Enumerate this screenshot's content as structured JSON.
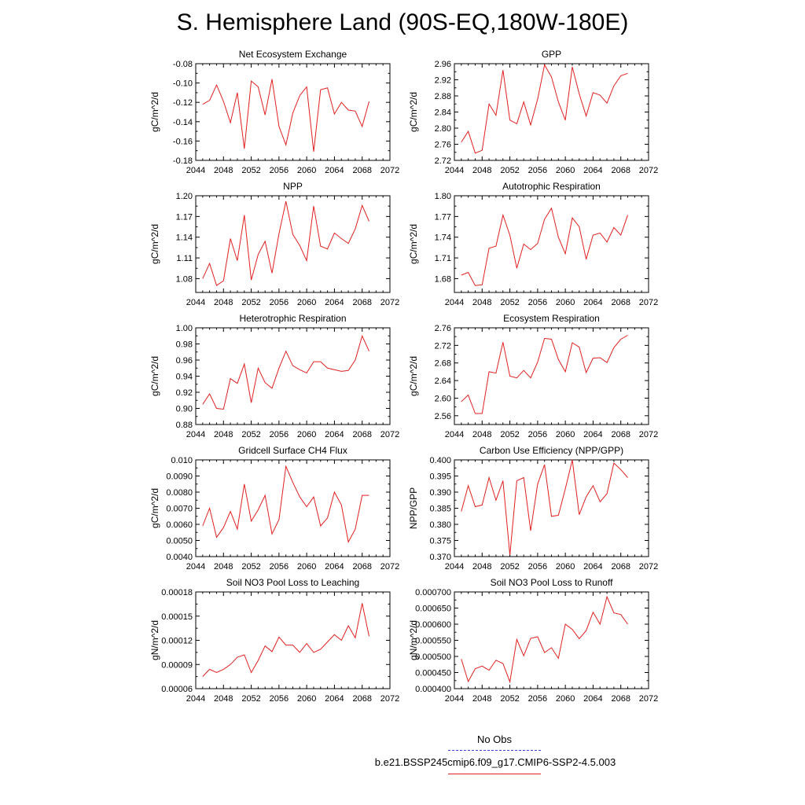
{
  "title": "S. Hemisphere Land (90S-EQ,180W-180E)",
  "legend": {
    "obs_label": "No Obs",
    "model_label": "b.e21.BSSP245cmip6.f09_g17.CMIP6-SSP2-4.5.003",
    "obs_color": "#3b3bd6",
    "model_color": "#e02020"
  },
  "chart_data": [
    {
      "type": "line",
      "title": "Net Ecosystem Exchange",
      "xlabel": "",
      "ylabel": "gC/m^2/d",
      "xlim": [
        2044,
        2072
      ],
      "ylim": [
        -0.18,
        -0.08
      ],
      "x_ticks": [
        "2044",
        "2048",
        "2052",
        "2056",
        "2060",
        "2064",
        "2068",
        "2072"
      ],
      "y_ticks": [
        "-0.18",
        "-0.16",
        "-0.14",
        "-0.12",
        "-0.10",
        "-0.08"
      ],
      "series": [
        {
          "x": [
            2045,
            2046,
            2047,
            2048,
            2049,
            2050,
            2051,
            2052,
            2053,
            2054,
            2055,
            2056,
            2057,
            2058,
            2059,
            2060,
            2061,
            2062,
            2063,
            2064,
            2065,
            2066,
            2067,
            2068,
            2069
          ],
          "values": [
            -0.122,
            -0.118,
            -0.102,
            -0.119,
            -0.141,
            -0.11,
            -0.168,
            -0.098,
            -0.104,
            -0.133,
            -0.096,
            -0.145,
            -0.164,
            -0.131,
            -0.113,
            -0.104,
            -0.171,
            -0.107,
            -0.105,
            -0.132,
            -0.12,
            -0.128,
            -0.129,
            -0.145,
            -0.119
          ]
        }
      ]
    },
    {
      "type": "line",
      "title": "GPP",
      "xlabel": "",
      "ylabel": "gC/m^2/d",
      "xlim": [
        2044,
        2072
      ],
      "ylim": [
        2.72,
        2.96
      ],
      "x_ticks": [
        "2044",
        "2048",
        "2052",
        "2056",
        "2060",
        "2064",
        "2068",
        "2072"
      ],
      "y_ticks": [
        "2.72",
        "2.76",
        "2.80",
        "2.84",
        "2.88",
        "2.92",
        "2.96"
      ],
      "series": [
        {
          "x": [
            2045,
            2046,
            2047,
            2048,
            2049,
            2050,
            2051,
            2052,
            2053,
            2054,
            2055,
            2056,
            2057,
            2058,
            2059,
            2060,
            2061,
            2062,
            2063,
            2064,
            2065,
            2066,
            2067,
            2068,
            2069
          ],
          "values": [
            2.765,
            2.792,
            2.738,
            2.745,
            2.86,
            2.832,
            2.944,
            2.82,
            2.811,
            2.865,
            2.808,
            2.872,
            2.957,
            2.927,
            2.865,
            2.82,
            2.952,
            2.885,
            2.83,
            2.888,
            2.882,
            2.862,
            2.905,
            2.93,
            2.936
          ]
        }
      ]
    },
    {
      "type": "line",
      "title": "NPP",
      "xlabel": "",
      "ylabel": "gC/m^2/d",
      "xlim": [
        2044,
        2072
      ],
      "ylim": [
        1.06,
        1.2
      ],
      "x_ticks": [
        "2044",
        "2048",
        "2052",
        "2056",
        "2060",
        "2064",
        "2068",
        "2072"
      ],
      "y_ticks": [
        "1.08",
        "1.11",
        "1.14",
        "1.17",
        "1.20"
      ],
      "series": [
        {
          "x": [
            2045,
            2046,
            2047,
            2048,
            2049,
            2050,
            2051,
            2052,
            2053,
            2054,
            2055,
            2056,
            2057,
            2058,
            2059,
            2060,
            2061,
            2062,
            2063,
            2064,
            2065,
            2066,
            2067,
            2068,
            2069
          ],
          "values": [
            1.08,
            1.102,
            1.07,
            1.077,
            1.138,
            1.106,
            1.172,
            1.078,
            1.115,
            1.134,
            1.088,
            1.145,
            1.192,
            1.144,
            1.128,
            1.106,
            1.185,
            1.127,
            1.123,
            1.146,
            1.138,
            1.131,
            1.152,
            1.186,
            1.163
          ]
        }
      ]
    },
    {
      "type": "line",
      "title": "Autotrophic Respiration",
      "xlabel": "",
      "ylabel": "gC/m^2/d",
      "xlim": [
        2044,
        2072
      ],
      "ylim": [
        1.66,
        1.8
      ],
      "x_ticks": [
        "2044",
        "2048",
        "2052",
        "2056",
        "2060",
        "2064",
        "2068",
        "2072"
      ],
      "y_ticks": [
        "1.68",
        "1.71",
        "1.74",
        "1.77",
        "1.80"
      ],
      "series": [
        {
          "x": [
            2045,
            2046,
            2047,
            2048,
            2049,
            2050,
            2051,
            2052,
            2053,
            2054,
            2055,
            2056,
            2057,
            2058,
            2059,
            2060,
            2061,
            2062,
            2063,
            2064,
            2065,
            2066,
            2067,
            2068,
            2069
          ],
          "values": [
            1.685,
            1.689,
            1.67,
            1.671,
            1.724,
            1.727,
            1.772,
            1.743,
            1.695,
            1.73,
            1.722,
            1.731,
            1.766,
            1.782,
            1.74,
            1.716,
            1.768,
            1.755,
            1.708,
            1.743,
            1.746,
            1.733,
            1.754,
            1.743,
            1.772
          ]
        }
      ]
    },
    {
      "type": "line",
      "title": "Heterotrophic Respiration",
      "xlabel": "",
      "ylabel": "gC/m^2/d",
      "xlim": [
        2044,
        2072
      ],
      "ylim": [
        0.88,
        1.0
      ],
      "x_ticks": [
        "2044",
        "2048",
        "2052",
        "2056",
        "2060",
        "2064",
        "2068",
        "2072"
      ],
      "y_ticks": [
        "0.88",
        "0.90",
        "0.92",
        "0.94",
        "0.96",
        "0.98",
        "1.00"
      ],
      "series": [
        {
          "x": [
            2045,
            2046,
            2047,
            2048,
            2049,
            2050,
            2051,
            2052,
            2053,
            2054,
            2055,
            2056,
            2057,
            2058,
            2059,
            2060,
            2061,
            2062,
            2063,
            2064,
            2065,
            2066,
            2067,
            2068,
            2069
          ],
          "values": [
            0.905,
            0.918,
            0.9,
            0.899,
            0.937,
            0.931,
            0.955,
            0.907,
            0.95,
            0.932,
            0.925,
            0.95,
            0.971,
            0.953,
            0.948,
            0.944,
            0.958,
            0.958,
            0.95,
            0.948,
            0.946,
            0.947,
            0.96,
            0.99,
            0.971
          ]
        }
      ]
    },
    {
      "type": "line",
      "title": "Ecosystem Respiration",
      "xlabel": "",
      "ylabel": "gC/m^2/d",
      "xlim": [
        2044,
        2072
      ],
      "ylim": [
        2.54,
        2.76
      ],
      "x_ticks": [
        "2044",
        "2048",
        "2052",
        "2056",
        "2060",
        "2064",
        "2068",
        "2072"
      ],
      "y_ticks": [
        "2.56",
        "2.60",
        "2.64",
        "2.68",
        "2.72",
        "2.76"
      ],
      "series": [
        {
          "x": [
            2045,
            2046,
            2047,
            2048,
            2049,
            2050,
            2051,
            2052,
            2053,
            2054,
            2055,
            2056,
            2057,
            2058,
            2059,
            2060,
            2061,
            2062,
            2063,
            2064,
            2065,
            2066,
            2067,
            2068,
            2069
          ],
          "values": [
            2.592,
            2.607,
            2.565,
            2.565,
            2.66,
            2.657,
            2.727,
            2.65,
            2.646,
            2.663,
            2.646,
            2.682,
            2.736,
            2.734,
            2.688,
            2.66,
            2.726,
            2.716,
            2.658,
            2.691,
            2.692,
            2.681,
            2.715,
            2.734,
            2.743
          ]
        }
      ]
    },
    {
      "type": "line",
      "title": "Gridcell Surface CH4 Flux",
      "xlabel": "",
      "ylabel": "gC/m^2/d",
      "xlim": [
        2044,
        2072
      ],
      "ylim": [
        0.004,
        0.01
      ],
      "x_ticks": [
        "2044",
        "2048",
        "2052",
        "2056",
        "2060",
        "2064",
        "2068",
        "2072"
      ],
      "y_ticks": [
        "0.0040",
        "0.0050",
        "0.0060",
        "0.0070",
        "0.0080",
        "0.0090",
        "0.010"
      ],
      "series": [
        {
          "x": [
            2045,
            2046,
            2047,
            2048,
            2049,
            2050,
            2051,
            2052,
            2053,
            2054,
            2055,
            2056,
            2057,
            2058,
            2059,
            2060,
            2061,
            2062,
            2063,
            2064,
            2065,
            2066,
            2067,
            2068,
            2069
          ],
          "values": [
            0.0059,
            0.007,
            0.0052,
            0.0058,
            0.0068,
            0.0057,
            0.0085,
            0.0062,
            0.0069,
            0.0078,
            0.0054,
            0.0063,
            0.0096,
            0.0086,
            0.0077,
            0.0071,
            0.0077,
            0.0059,
            0.0064,
            0.008,
            0.0072,
            0.0049,
            0.0057,
            0.0078,
            0.0078
          ]
        }
      ]
    },
    {
      "type": "line",
      "title": "Carbon Use Efficiency (NPP/GPP)",
      "xlabel": "",
      "ylabel": "NPP/GPP",
      "xlim": [
        2044,
        2072
      ],
      "ylim": [
        0.37,
        0.4
      ],
      "x_ticks": [
        "2044",
        "2048",
        "2052",
        "2056",
        "2060",
        "2064",
        "2068",
        "2072"
      ],
      "y_ticks": [
        "0.370",
        "0.375",
        "0.380",
        "0.385",
        "0.390",
        "0.395",
        "0.400"
      ],
      "series": [
        {
          "x": [
            2045,
            2046,
            2047,
            2048,
            2049,
            2050,
            2051,
            2052,
            2053,
            2054,
            2055,
            2056,
            2057,
            2058,
            2059,
            2060,
            2061,
            2062,
            2063,
            2064,
            2065,
            2066,
            2067,
            2068,
            2069
          ],
          "values": [
            0.384,
            0.392,
            0.3855,
            0.386,
            0.3945,
            0.3875,
            0.3935,
            0.3705,
            0.3935,
            0.3945,
            0.378,
            0.3925,
            0.3985,
            0.3825,
            0.3828,
            0.391,
            0.4,
            0.383,
            0.3885,
            0.392,
            0.387,
            0.3895,
            0.399,
            0.397,
            0.3945
          ]
        }
      ]
    },
    {
      "type": "line",
      "title": "Soil NO3 Pool Loss to Leaching",
      "xlabel": "",
      "ylabel": "gN/m^2/d",
      "xlim": [
        2044,
        2072
      ],
      "ylim": [
        6e-05,
        0.00018
      ],
      "x_ticks": [
        "2044",
        "2048",
        "2052",
        "2056",
        "2060",
        "2064",
        "2068",
        "2072"
      ],
      "y_ticks": [
        "0.00006",
        "0.00009",
        "0.00012",
        "0.00015",
        "0.00018"
      ],
      "series": [
        {
          "x": [
            2045,
            2046,
            2047,
            2048,
            2049,
            2050,
            2051,
            2052,
            2053,
            2054,
            2055,
            2056,
            2057,
            2058,
            2059,
            2060,
            2061,
            2062,
            2063,
            2064,
            2065,
            2066,
            2067,
            2068,
            2069
          ],
          "values": [
            7.5e-05,
            8.4e-05,
            8e-05,
            8.4e-05,
            9e-05,
            9.9e-05,
            0.000102,
            8e-05,
            9.5e-05,
            0.000113,
            0.000106,
            0.000124,
            0.000114,
            0.000114,
            0.000105,
            0.000116,
            0.000105,
            0.000109,
            0.000118,
            0.000127,
            0.00012,
            0.000138,
            0.000123,
            0.000166,
            0.000125
          ]
        }
      ]
    },
    {
      "type": "line",
      "title": "Soil NO3 Pool Loss to Runoff",
      "xlabel": "",
      "ylabel": "gN/m^2/d",
      "xlim": [
        2044,
        2072
      ],
      "ylim": [
        0.0004,
        0.0007
      ],
      "x_ticks": [
        "2044",
        "2048",
        "2052",
        "2056",
        "2060",
        "2064",
        "2068",
        "2072"
      ],
      "y_ticks": [
        "0.000400",
        "0.000450",
        "0.000500",
        "0.000550",
        "0.000600",
        "0.000650",
        "0.000700"
      ],
      "series": [
        {
          "x": [
            2045,
            2046,
            2047,
            2048,
            2049,
            2050,
            2051,
            2052,
            2053,
            2054,
            2055,
            2056,
            2057,
            2058,
            2059,
            2060,
            2061,
            2062,
            2063,
            2064,
            2065,
            2066,
            2067,
            2068,
            2069
          ],
          "values": [
            0.000492,
            0.000422,
            0.000462,
            0.00047,
            0.000457,
            0.000488,
            0.000478,
            0.000421,
            0.000553,
            0.000502,
            0.000556,
            0.000561,
            0.000512,
            0.000527,
            0.000494,
            0.0006,
            0.000584,
            0.000555,
            0.00058,
            0.000637,
            0.0006,
            0.000685,
            0.000635,
            0.00063,
            0.0006
          ]
        }
      ]
    }
  ]
}
